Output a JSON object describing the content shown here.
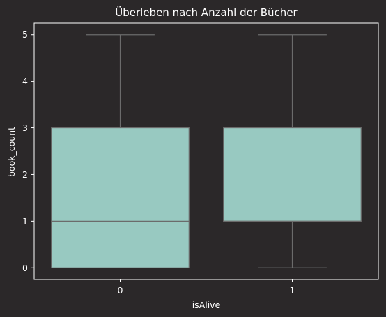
{
  "chart_data": {
    "type": "box",
    "title": "Überleben nach Anzahl der Bücher",
    "xlabel": "isAlive",
    "ylabel": "book_count",
    "categories": [
      "0",
      "1"
    ],
    "boxes": [
      {
        "category": "0",
        "whisker_low": 0,
        "q1": 0,
        "median": 1,
        "q3": 3,
        "whisker_high": 5
      },
      {
        "category": "1",
        "whisker_low": 0,
        "q1": 1,
        "median": 1,
        "q3": 3,
        "whisker_high": 5
      }
    ],
    "yticks": [
      "0",
      "1",
      "2",
      "3",
      "4",
      "5"
    ],
    "ylim": [
      -0.25,
      5.25
    ],
    "grid": false
  },
  "colors": {
    "background": "#2b2829",
    "box_fill": "#98c9c1",
    "lines": "#6b6b6b",
    "axes": "#ffffff",
    "text": "#ffffff"
  }
}
